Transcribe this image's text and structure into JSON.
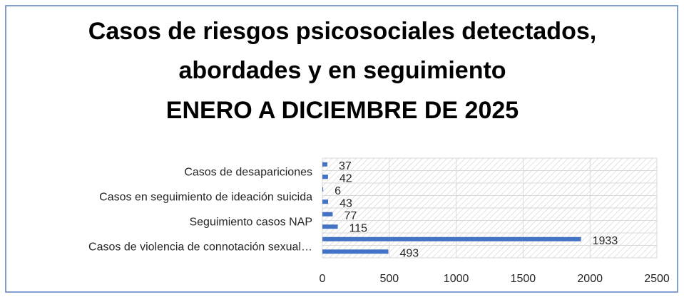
{
  "chart_data": {
    "type": "bar",
    "orientation": "horizontal",
    "title": [
      "Casos de riesgos psicosociales detectados,",
      "abordades y en seguimiento",
      "ENERO A DICIEMBRE DE 2025"
    ],
    "categories": [
      "Casos de violencia de connotación sexual…",
      null,
      "Seguimiento casos NAP",
      null,
      "Casos en seguimiento de ideación suicida",
      null,
      "Casos de desapariciones",
      null
    ],
    "values": [
      493,
      1933,
      115,
      77,
      43,
      6,
      42,
      37
    ],
    "color": "#4472c4",
    "xlim": [
      0,
      2500
    ],
    "xticks": [
      0,
      500,
      1000,
      1500,
      2000,
      2500
    ],
    "grid": true
  }
}
